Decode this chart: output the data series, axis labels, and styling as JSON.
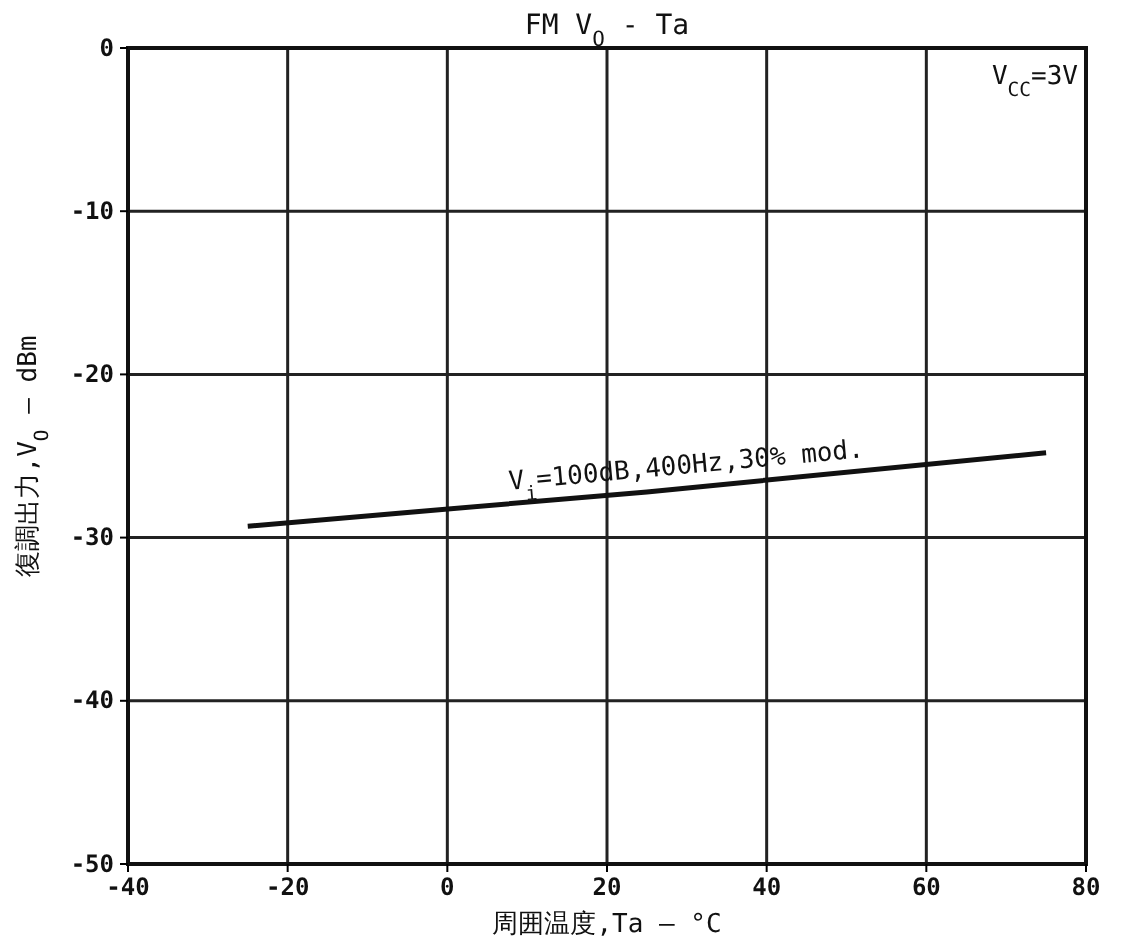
{
  "chart_data": {
    "type": "line",
    "title": "FM V$_{O}$ - Ta",
    "xlabel": "周囲温度,Ta — °C",
    "ylabel": "復調出力,V$_{O}$ — dBm",
    "annotations": [
      "V$_{CC}$=3V"
    ],
    "x": [
      -25,
      25,
      75
    ],
    "series": [
      {
        "name": "V$_{i}$=100dB,400Hz,30% mod.",
        "color": "#111111",
        "values": [
          -29.3,
          -27.2,
          -24.8
        ]
      }
    ],
    "xlim": [
      -40,
      80
    ],
    "xticks": [
      -40,
      -20,
      0,
      20,
      40,
      60,
      80
    ],
    "ylim": [
      -50,
      0
    ],
    "yticks": [
      0,
      -10,
      -20,
      -30,
      -40,
      -50
    ],
    "grid": true,
    "marker": "none",
    "line_style": "solid"
  }
}
